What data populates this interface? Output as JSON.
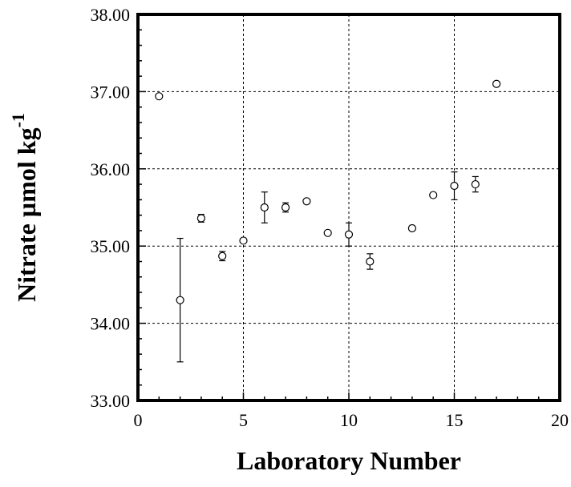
{
  "chart_data": {
    "type": "scatter",
    "title": "",
    "xlabel": "Laboratory Number",
    "ylabel_main": "Nitrate µmol kg",
    "ylabel_sup": "-1",
    "xlim": [
      0,
      20
    ],
    "ylim": [
      33,
      38
    ],
    "x_ticks": [
      0,
      5,
      10,
      15,
      20
    ],
    "x_tick_labels": [
      "0",
      "5",
      "10",
      "15",
      "20"
    ],
    "y_ticks": [
      33,
      34,
      35,
      36,
      37,
      38
    ],
    "y_tick_labels": [
      "33.00",
      "34.00",
      "35.00",
      "36.00",
      "37.00",
      "38.00"
    ],
    "grid": true,
    "marker": "open-circle",
    "points": [
      {
        "x": 1,
        "y": 36.94,
        "err": 0
      },
      {
        "x": 2,
        "y": 34.3,
        "err": 0.8
      },
      {
        "x": 3,
        "y": 35.36,
        "err": 0.05
      },
      {
        "x": 4,
        "y": 34.87,
        "err": 0.06
      },
      {
        "x": 5,
        "y": 35.07,
        "err": 0
      },
      {
        "x": 6,
        "y": 35.5,
        "err": 0.2
      },
      {
        "x": 7,
        "y": 35.5,
        "err": 0.06
      },
      {
        "x": 8,
        "y": 35.58,
        "err": 0
      },
      {
        "x": 9,
        "y": 35.17,
        "err": 0
      },
      {
        "x": 10,
        "y": 35.15,
        "err": 0.15
      },
      {
        "x": 11,
        "y": 34.8,
        "err": 0.1
      },
      {
        "x": 13,
        "y": 35.23,
        "err": 0
      },
      {
        "x": 14,
        "y": 35.66,
        "err": 0
      },
      {
        "x": 15,
        "y": 35.78,
        "err": 0.18
      },
      {
        "x": 16,
        "y": 35.8,
        "err": 0.1
      },
      {
        "x": 17,
        "y": 37.1,
        "err": 0
      }
    ]
  },
  "colors": {
    "axis": "#000000",
    "grid": "#000000",
    "marker": "#000000",
    "background": "#ffffff"
  }
}
